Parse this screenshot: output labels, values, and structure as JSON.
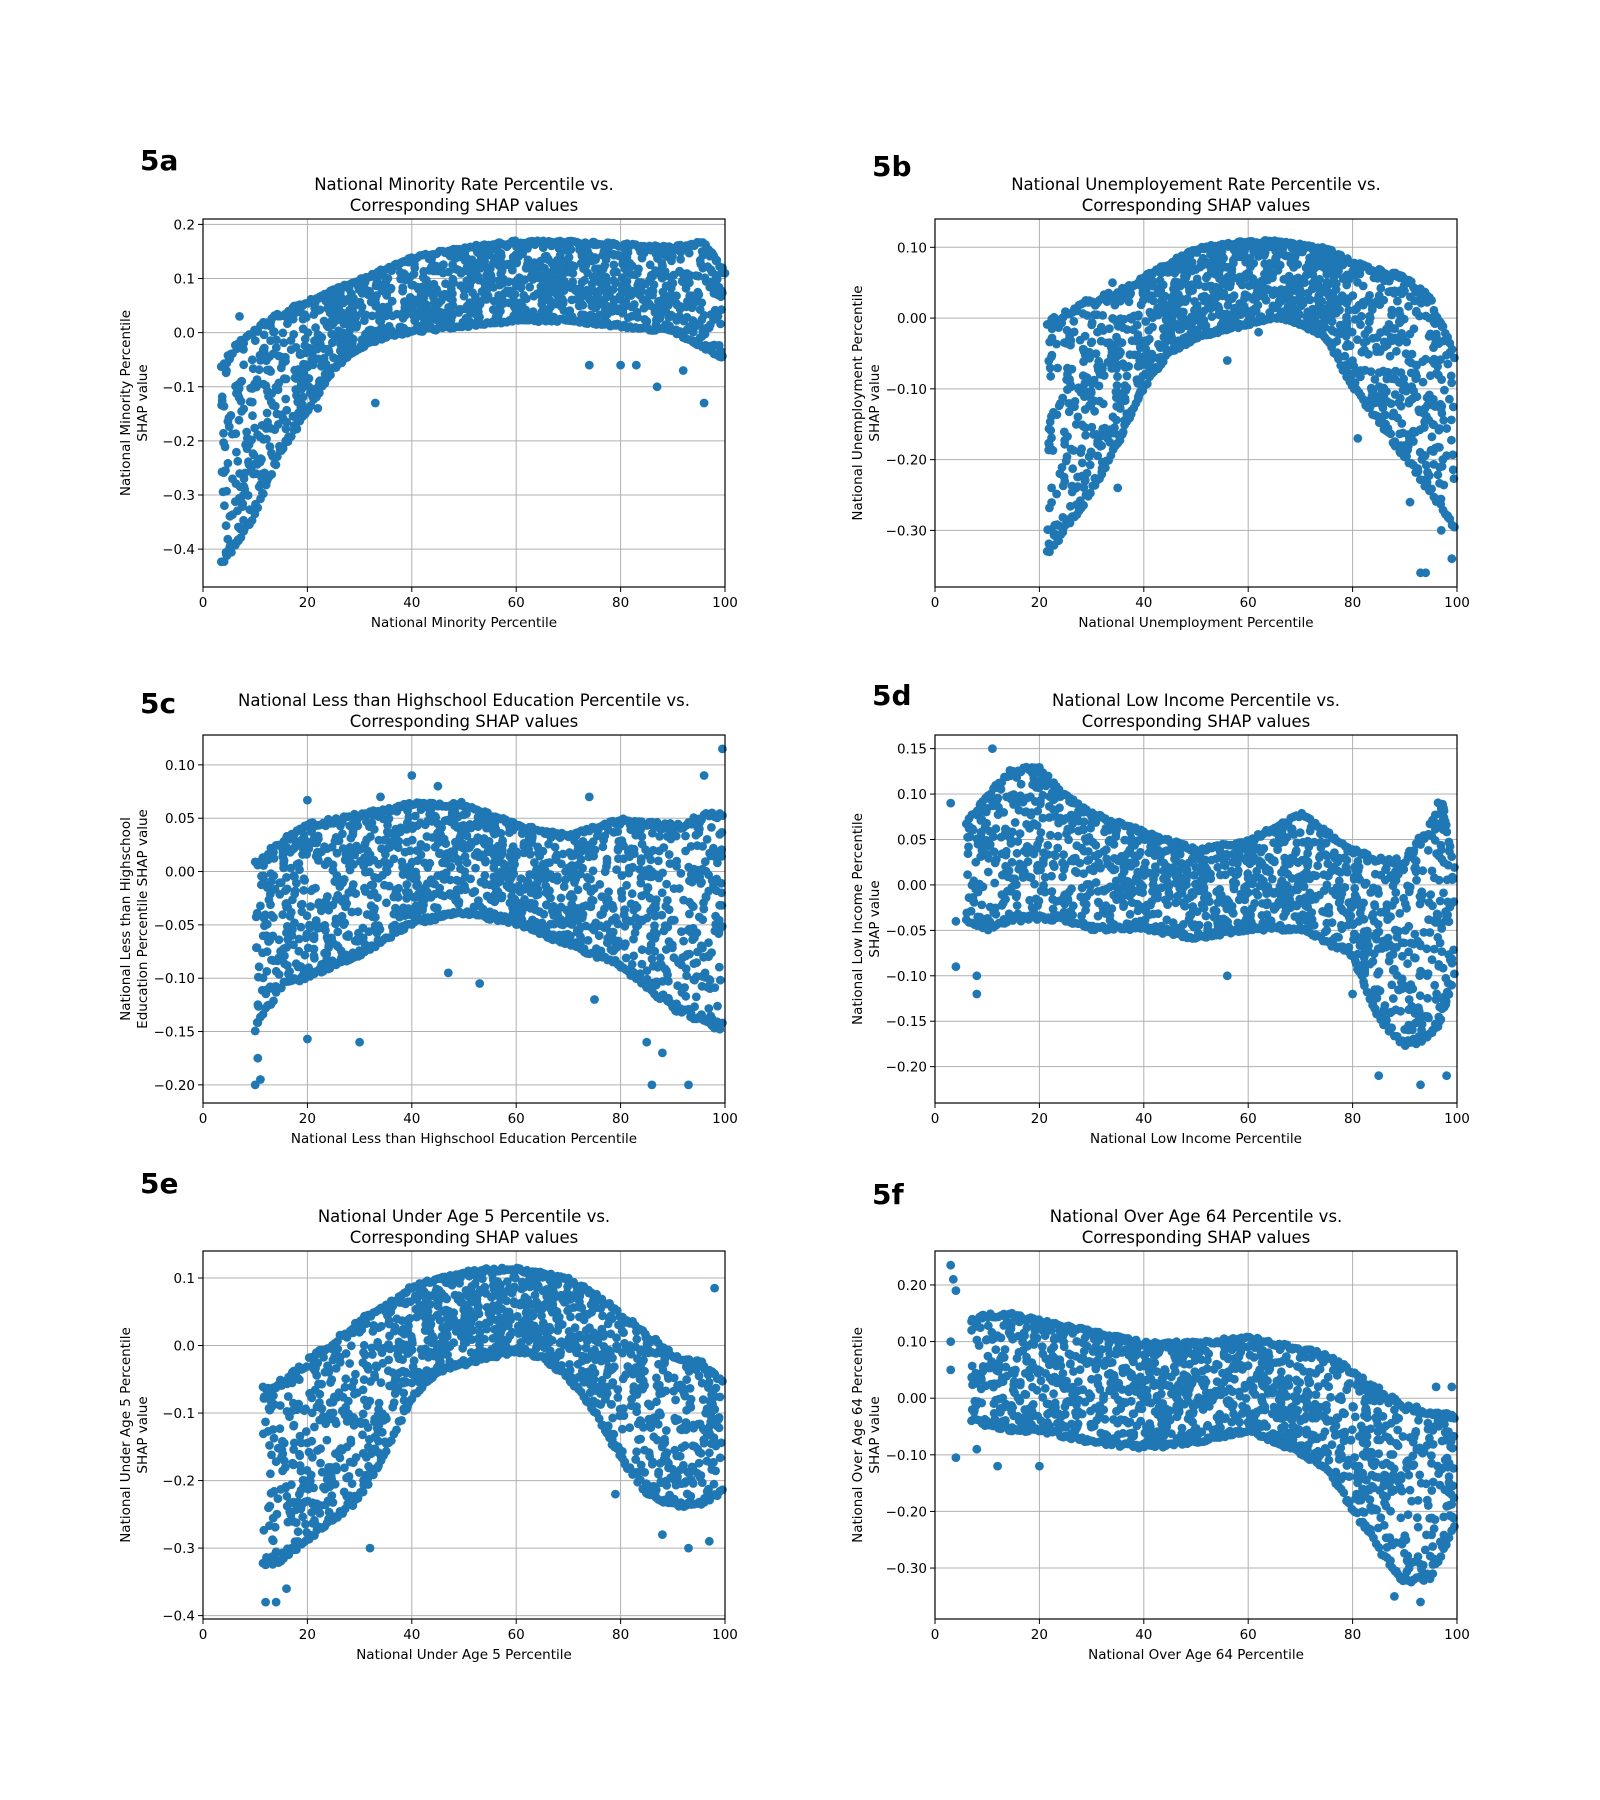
{
  "figure": {
    "point_color": "#1f77b4"
  },
  "chart_data": [
    {
      "panel_label": "5a",
      "type": "scatter",
      "title": [
        "National Minority Rate Percentile vs.",
        "Corresponding SHAP values"
      ],
      "xlabel": "National Minority Percentile",
      "ylabel": [
        "National Minority Percentile",
        "SHAP value"
      ],
      "xlim": [
        0,
        100
      ],
      "ylim": [
        -0.47,
        0.21
      ],
      "xticks": [
        0,
        20,
        40,
        60,
        80,
        100
      ],
      "yticks": [
        -0.4,
        -0.3,
        -0.2,
        -0.1,
        0.0,
        0.1,
        0.2
      ],
      "grid": true,
      "band": [
        [
          3.5,
          -0.43,
          -0.06
        ],
        [
          6,
          -0.4,
          -0.02
        ],
        [
          10,
          -0.34,
          0.01
        ],
        [
          15,
          -0.22,
          0.04
        ],
        [
          20,
          -0.15,
          0.06
        ],
        [
          25,
          -0.07,
          0.08
        ],
        [
          30,
          -0.03,
          0.1
        ],
        [
          35,
          -0.01,
          0.12
        ],
        [
          40,
          0.0,
          0.14
        ],
        [
          50,
          0.01,
          0.16
        ],
        [
          60,
          0.02,
          0.17
        ],
        [
          70,
          0.02,
          0.17
        ],
        [
          80,
          0.01,
          0.165
        ],
        [
          90,
          0.0,
          0.16
        ],
        [
          96,
          -0.03,
          0.17
        ],
        [
          99.5,
          -0.05,
          0.12
        ]
      ],
      "outliers": [
        [
          7,
          0.03
        ],
        [
          33,
          -0.13
        ],
        [
          87,
          -0.1
        ],
        [
          92,
          -0.07
        ],
        [
          80,
          -0.06
        ],
        [
          83,
          -0.06
        ],
        [
          74,
          -0.06
        ],
        [
          96,
          -0.13
        ],
        [
          22,
          -0.14
        ],
        [
          100,
          0.11
        ]
      ]
    },
    {
      "panel_label": "5b",
      "type": "scatter",
      "title": [
        "National Unemployement Rate Percentile vs.",
        "Corresponding SHAP values"
      ],
      "xlabel": "National Unemployment Percentile",
      "ylabel": [
        "National Unemployment Percentile",
        "SHAP value"
      ],
      "xlim": [
        0,
        100
      ],
      "ylim": [
        -0.38,
        0.14
      ],
      "xticks": [
        0,
        20,
        40,
        60,
        80,
        100
      ],
      "yticks": [
        -0.3,
        -0.2,
        -0.1,
        0.0,
        0.1
      ],
      "grid": true,
      "band": [
        [
          21.5,
          -0.34,
          0.0
        ],
        [
          25,
          -0.3,
          0.01
        ],
        [
          30,
          -0.25,
          0.03
        ],
        [
          35,
          -0.18,
          0.04
        ],
        [
          40,
          -0.1,
          0.06
        ],
        [
          45,
          -0.05,
          0.08
        ],
        [
          50,
          -0.03,
          0.1
        ],
        [
          55,
          -0.02,
          0.105
        ],
        [
          60,
          -0.01,
          0.11
        ],
        [
          65,
          0.0,
          0.11
        ],
        [
          70,
          -0.01,
          0.105
        ],
        [
          75,
          -0.03,
          0.1
        ],
        [
          80,
          -0.1,
          0.08
        ],
        [
          85,
          -0.15,
          0.07
        ],
        [
          90,
          -0.2,
          0.06
        ],
        [
          95,
          -0.25,
          0.03
        ],
        [
          99.5,
          -0.3,
          -0.05
        ]
      ],
      "outliers": [
        [
          34,
          0.05
        ],
        [
          93,
          -0.36
        ],
        [
          94,
          -0.36
        ],
        [
          99,
          -0.34
        ],
        [
          81,
          -0.17
        ],
        [
          35,
          -0.24
        ],
        [
          56,
          -0.06
        ],
        [
          62,
          -0.02
        ],
        [
          91,
          -0.26
        ],
        [
          97,
          -0.3
        ]
      ]
    },
    {
      "panel_label": "5c",
      "type": "scatter",
      "title": [
        "National Less than Highschool Education Percentile vs.",
        "Corresponding SHAP values"
      ],
      "xlabel": "National Less than Highschool Education Percentile",
      "ylabel": [
        "National Less than Highschool",
        "Education Percentile SHAP value"
      ],
      "xlim": [
        0,
        100
      ],
      "ylim": [
        -0.217,
        0.128
      ],
      "xticks": [
        0,
        20,
        40,
        60,
        80,
        100
      ],
      "yticks": [
        -0.2,
        -0.15,
        -0.1,
        -0.05,
        0.0,
        0.05,
        0.1
      ],
      "grid": true,
      "band": [
        [
          10,
          -0.15,
          0.01
        ],
        [
          15,
          -0.11,
          0.03
        ],
        [
          20,
          -0.1,
          0.045
        ],
        [
          30,
          -0.08,
          0.055
        ],
        [
          40,
          -0.05,
          0.065
        ],
        [
          50,
          -0.04,
          0.065
        ],
        [
          60,
          -0.05,
          0.045
        ],
        [
          70,
          -0.07,
          0.035
        ],
        [
          80,
          -0.09,
          0.05
        ],
        [
          90,
          -0.13,
          0.045
        ],
        [
          99.5,
          -0.15,
          0.06
        ]
      ],
      "outliers": [
        [
          10,
          -0.2
        ],
        [
          10.5,
          -0.175
        ],
        [
          11,
          -0.195
        ],
        [
          20,
          -0.157
        ],
        [
          30,
          -0.16
        ],
        [
          34,
          0.07
        ],
        [
          40,
          0.09
        ],
        [
          45,
          0.08
        ],
        [
          53,
          -0.105
        ],
        [
          47,
          -0.095
        ],
        [
          74,
          0.07
        ],
        [
          86,
          -0.2
        ],
        [
          93,
          -0.2
        ],
        [
          99.5,
          0.115
        ],
        [
          96,
          0.09
        ],
        [
          20,
          0.067
        ],
        [
          88,
          -0.17
        ],
        [
          75,
          -0.12
        ],
        [
          85,
          -0.16
        ]
      ]
    },
    {
      "panel_label": "5d",
      "type": "scatter",
      "title": [
        "National Low Income Percentile vs.",
        "Corresponding SHAP values"
      ],
      "xlabel": "National Low Income Percentile",
      "ylabel": [
        "National Low Income Percentile",
        "SHAP value"
      ],
      "xlim": [
        0,
        100
      ],
      "ylim": [
        -0.24,
        0.165
      ],
      "xticks": [
        0,
        20,
        40,
        60,
        80,
        100
      ],
      "yticks": [
        -0.2,
        -0.15,
        -0.1,
        -0.05,
        0.0,
        0.05,
        0.1,
        0.15
      ],
      "grid": true,
      "band": [
        [
          6,
          -0.04,
          0.07
        ],
        [
          10,
          -0.05,
          0.1
        ],
        [
          15,
          -0.04,
          0.13
        ],
        [
          20,
          -0.04,
          0.13
        ],
        [
          25,
          -0.04,
          0.1
        ],
        [
          30,
          -0.05,
          0.08
        ],
        [
          40,
          -0.05,
          0.06
        ],
        [
          50,
          -0.06,
          0.04
        ],
        [
          60,
          -0.05,
          0.05
        ],
        [
          70,
          -0.05,
          0.08
        ],
        [
          80,
          -0.08,
          0.04
        ],
        [
          85,
          -0.15,
          0.03
        ],
        [
          90,
          -0.18,
          0.03
        ],
        [
          95,
          -0.17,
          0.07
        ],
        [
          97,
          -0.15,
          0.1
        ],
        [
          99.5,
          -0.1,
          0.02
        ]
      ],
      "outliers": [
        [
          11,
          0.15
        ],
        [
          8,
          -0.12
        ],
        [
          8,
          -0.1
        ],
        [
          3,
          0.09
        ],
        [
          4,
          -0.04
        ],
        [
          56,
          -0.1
        ],
        [
          93,
          -0.22
        ],
        [
          98,
          -0.21
        ],
        [
          85,
          -0.21
        ],
        [
          80,
          -0.12
        ],
        [
          4,
          -0.09
        ]
      ]
    },
    {
      "panel_label": "5e",
      "type": "scatter",
      "title": [
        "National Under Age 5 Percentile vs.",
        "Corresponding SHAP values"
      ],
      "xlabel": "National Under Age 5 Percentile",
      "ylabel": [
        "National Under Age 5 Percentile",
        "SHAP value"
      ],
      "xlim": [
        0,
        100
      ],
      "ylim": [
        -0.405,
        0.14
      ],
      "xticks": [
        0,
        20,
        40,
        60,
        80,
        100
      ],
      "yticks": [
        -0.4,
        -0.3,
        -0.2,
        -0.1,
        0.0,
        0.1
      ],
      "grid": true,
      "band": [
        [
          11.5,
          -0.33,
          -0.06
        ],
        [
          15,
          -0.32,
          -0.05
        ],
        [
          20,
          -0.29,
          -0.02
        ],
        [
          25,
          -0.26,
          0.01
        ],
        [
          30,
          -0.23,
          0.04
        ],
        [
          35,
          -0.16,
          0.06
        ],
        [
          40,
          -0.08,
          0.09
        ],
        [
          45,
          -0.04,
          0.1
        ],
        [
          50,
          -0.03,
          0.11
        ],
        [
          55,
          -0.02,
          0.115
        ],
        [
          60,
          -0.01,
          0.115
        ],
        [
          65,
          -0.02,
          0.11
        ],
        [
          70,
          -0.05,
          0.1
        ],
        [
          75,
          -0.1,
          0.08
        ],
        [
          80,
          -0.17,
          0.05
        ],
        [
          85,
          -0.22,
          0.02
        ],
        [
          90,
          -0.24,
          -0.01
        ],
        [
          95,
          -0.24,
          -0.02
        ],
        [
          99.5,
          -0.22,
          -0.05
        ]
      ],
      "outliers": [
        [
          12,
          -0.38
        ],
        [
          14,
          -0.38
        ],
        [
          16,
          -0.36
        ],
        [
          98,
          0.085
        ],
        [
          88,
          -0.28
        ],
        [
          93,
          -0.3
        ],
        [
          97,
          -0.29
        ],
        [
          32,
          -0.3
        ],
        [
          79,
          -0.22
        ]
      ]
    },
    {
      "panel_label": "5f",
      "type": "scatter",
      "title": [
        "National Over Age 64 Percentile vs.",
        "Corresponding SHAP values"
      ],
      "xlabel": "National  Over Age 64 Percentile",
      "ylabel": [
        "National  Over Age 64 Percentile",
        "SHAP value"
      ],
      "xlim": [
        0,
        100
      ],
      "ylim": [
        -0.39,
        0.26
      ],
      "xticks": [
        0,
        20,
        40,
        60,
        80,
        100
      ],
      "yticks": [
        -0.3,
        -0.2,
        -0.1,
        0.0,
        0.1,
        0.2
      ],
      "grid": true,
      "band": [
        [
          7,
          -0.04,
          0.14
        ],
        [
          10,
          -0.05,
          0.15
        ],
        [
          15,
          -0.06,
          0.15
        ],
        [
          20,
          -0.06,
          0.14
        ],
        [
          30,
          -0.08,
          0.12
        ],
        [
          40,
          -0.09,
          0.1
        ],
        [
          50,
          -0.08,
          0.1
        ],
        [
          60,
          -0.06,
          0.11
        ],
        [
          70,
          -0.1,
          0.09
        ],
        [
          75,
          -0.13,
          0.08
        ],
        [
          80,
          -0.2,
          0.05
        ],
        [
          85,
          -0.27,
          0.02
        ],
        [
          90,
          -0.33,
          -0.01
        ],
        [
          95,
          -0.32,
          -0.02
        ],
        [
          99.5,
          -0.23,
          -0.03
        ]
      ],
      "outliers": [
        [
          3,
          0.235
        ],
        [
          3.5,
          0.21
        ],
        [
          4,
          0.19
        ],
        [
          3,
          0.1
        ],
        [
          4,
          -0.105
        ],
        [
          8,
          -0.09
        ],
        [
          12,
          -0.12
        ],
        [
          20,
          -0.12
        ],
        [
          93,
          -0.36
        ],
        [
          88,
          -0.35
        ],
        [
          99,
          0.02
        ],
        [
          96,
          0.02
        ],
        [
          3,
          0.05
        ]
      ]
    }
  ]
}
